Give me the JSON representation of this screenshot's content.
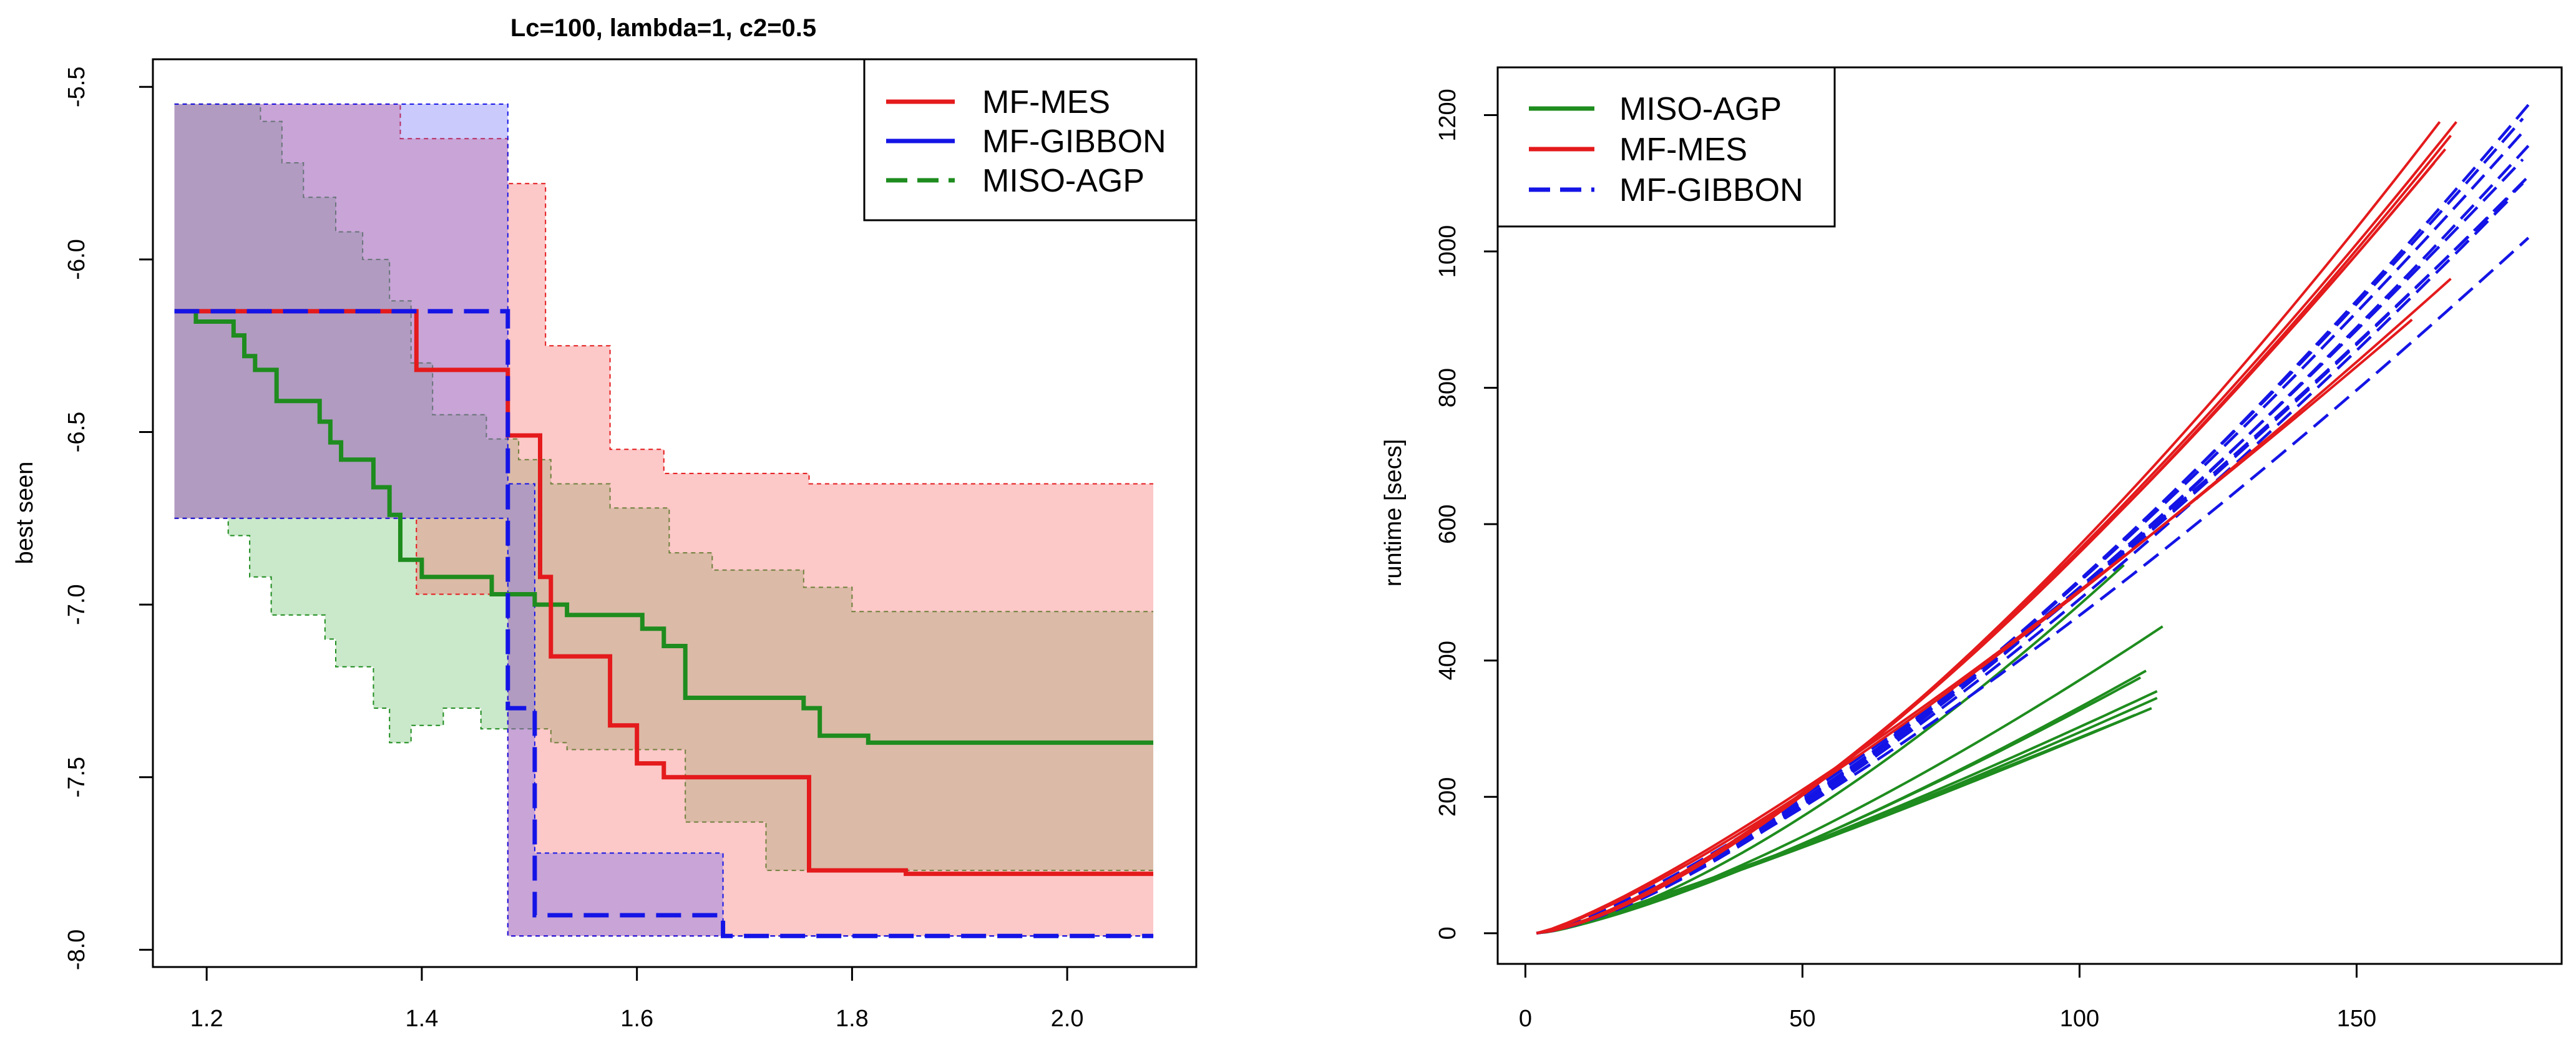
{
  "colors": {
    "mes": "#e41a1c",
    "gibbon": "#1414e6",
    "miso": "#1e8c1e",
    "mes_fill": "rgba(248,110,110,0.38)",
    "gibbon_fill": "rgba(90,90,250,0.32)",
    "miso_fill": "rgba(80,180,80,0.30)"
  },
  "chart_data": [
    {
      "type": "line",
      "title": "Lc=100, lambda=1, c2=0.5",
      "xlabel": "",
      "ylabel": "best seen",
      "xlim": [
        1.15,
        2.12
      ],
      "ylim": [
        -8.05,
        -5.42
      ],
      "xticks": [
        1.2,
        1.4,
        1.6,
        1.8,
        2.0
      ],
      "xtick_labels": [
        "1.2",
        "1.4",
        "1.6",
        "1.8",
        "2.0"
      ],
      "yticks": [
        -5.5,
        -6.0,
        -6.5,
        -7.0,
        -7.5,
        -8.0
      ],
      "ytick_labels": [
        "-5.5",
        "-6.0",
        "-6.5",
        "-7.0",
        "-7.5",
        "-8.0"
      ],
      "legend_position": "top-right",
      "legend": [
        {
          "label": "MF-MES",
          "series": "mes",
          "style": "solid"
        },
        {
          "label": "MF-GIBBON",
          "series": "gibbon",
          "style": "solid"
        },
        {
          "label": "MISO-AGP",
          "series": "miso",
          "style": "dashed"
        }
      ],
      "series": [
        {
          "name": "MISO-AGP",
          "key": "miso",
          "dashed": false,
          "mean": [
            [
              1.17,
              -6.15
            ],
            [
              1.19,
              -6.15
            ],
            [
              1.19,
              -6.18
            ],
            [
              1.225,
              -6.18
            ],
            [
              1.225,
              -6.22
            ],
            [
              1.235,
              -6.22
            ],
            [
              1.235,
              -6.28
            ],
            [
              1.245,
              -6.28
            ],
            [
              1.245,
              -6.32
            ],
            [
              1.265,
              -6.32
            ],
            [
              1.265,
              -6.41
            ],
            [
              1.305,
              -6.41
            ],
            [
              1.305,
              -6.47
            ],
            [
              1.315,
              -6.47
            ],
            [
              1.315,
              -6.53
            ],
            [
              1.325,
              -6.53
            ],
            [
              1.325,
              -6.58
            ],
            [
              1.355,
              -6.58
            ],
            [
              1.355,
              -6.66
            ],
            [
              1.37,
              -6.66
            ],
            [
              1.37,
              -6.74
            ],
            [
              1.38,
              -6.74
            ],
            [
              1.38,
              -6.87
            ],
            [
              1.4,
              -6.87
            ],
            [
              1.4,
              -6.92
            ],
            [
              1.465,
              -6.92
            ],
            [
              1.465,
              -6.97
            ],
            [
              1.505,
              -6.97
            ],
            [
              1.505,
              -7.0
            ],
            [
              1.535,
              -7.0
            ],
            [
              1.535,
              -7.03
            ],
            [
              1.605,
              -7.03
            ],
            [
              1.605,
              -7.07
            ],
            [
              1.625,
              -7.07
            ],
            [
              1.625,
              -7.12
            ],
            [
              1.645,
              -7.12
            ],
            [
              1.645,
              -7.27
            ],
            [
              1.755,
              -7.27
            ],
            [
              1.755,
              -7.3
            ],
            [
              1.77,
              -7.3
            ],
            [
              1.77,
              -7.38
            ],
            [
              1.815,
              -7.38
            ],
            [
              1.815,
              -7.4
            ],
            [
              2.08,
              -7.4
            ]
          ],
          "band": {
            "upper": [
              [
                1.17,
                -5.55
              ],
              [
                1.25,
                -5.55
              ],
              [
                1.25,
                -5.6
              ],
              [
                1.27,
                -5.6
              ],
              [
                1.27,
                -5.72
              ],
              [
                1.29,
                -5.72
              ],
              [
                1.29,
                -5.82
              ],
              [
                1.32,
                -5.82
              ],
              [
                1.32,
                -5.92
              ],
              [
                1.345,
                -5.92
              ],
              [
                1.345,
                -6.0
              ],
              [
                1.37,
                -6.0
              ],
              [
                1.37,
                -6.12
              ],
              [
                1.39,
                -6.12
              ],
              [
                1.39,
                -6.3
              ],
              [
                1.41,
                -6.3
              ],
              [
                1.41,
                -6.45
              ],
              [
                1.46,
                -6.45
              ],
              [
                1.46,
                -6.52
              ],
              [
                1.49,
                -6.52
              ],
              [
                1.49,
                -6.58
              ],
              [
                1.52,
                -6.58
              ],
              [
                1.52,
                -6.65
              ],
              [
                1.575,
                -6.65
              ],
              [
                1.575,
                -6.72
              ],
              [
                1.63,
                -6.72
              ],
              [
                1.63,
                -6.85
              ],
              [
                1.67,
                -6.85
              ],
              [
                1.67,
                -6.9
              ],
              [
                1.755,
                -6.9
              ],
              [
                1.755,
                -6.95
              ],
              [
                1.8,
                -6.95
              ],
              [
                1.8,
                -7.02
              ],
              [
                2.08,
                -7.02
              ]
            ],
            "lower": [
              [
                1.17,
                -6.75
              ],
              [
                1.22,
                -6.75
              ],
              [
                1.22,
                -6.8
              ],
              [
                1.24,
                -6.8
              ],
              [
                1.24,
                -6.92
              ],
              [
                1.26,
                -6.92
              ],
              [
                1.26,
                -7.03
              ],
              [
                1.31,
                -7.03
              ],
              [
                1.31,
                -7.1
              ],
              [
                1.32,
                -7.1
              ],
              [
                1.32,
                -7.18
              ],
              [
                1.355,
                -7.18
              ],
              [
                1.355,
                -7.3
              ],
              [
                1.37,
                -7.3
              ],
              [
                1.37,
                -7.4
              ],
              [
                1.39,
                -7.4
              ],
              [
                1.39,
                -7.35
              ],
              [
                1.42,
                -7.35
              ],
              [
                1.42,
                -7.3
              ],
              [
                1.455,
                -7.3
              ],
              [
                1.455,
                -7.36
              ],
              [
                1.52,
                -7.36
              ],
              [
                1.52,
                -7.4
              ],
              [
                1.535,
                -7.4
              ],
              [
                1.535,
                -7.42
              ],
              [
                1.645,
                -7.42
              ],
              [
                1.645,
                -7.63
              ],
              [
                1.72,
                -7.63
              ],
              [
                1.72,
                -7.77
              ],
              [
                2.08,
                -7.77
              ]
            ]
          }
        },
        {
          "name": "MF-MES",
          "key": "mes",
          "dashed": false,
          "mean": [
            [
              1.17,
              -6.15
            ],
            [
              1.395,
              -6.15
            ],
            [
              1.395,
              -6.32
            ],
            [
              1.48,
              -6.32
            ],
            [
              1.48,
              -6.51
            ],
            [
              1.51,
              -6.51
            ],
            [
              1.51,
              -6.92
            ],
            [
              1.52,
              -6.92
            ],
            [
              1.52,
              -7.15
            ],
            [
              1.575,
              -7.15
            ],
            [
              1.575,
              -7.35
            ],
            [
              1.6,
              -7.35
            ],
            [
              1.6,
              -7.46
            ],
            [
              1.625,
              -7.46
            ],
            [
              1.625,
              -7.5
            ],
            [
              1.76,
              -7.5
            ],
            [
              1.76,
              -7.77
            ],
            [
              1.85,
              -7.77
            ],
            [
              1.85,
              -7.78
            ],
            [
              2.08,
              -7.78
            ]
          ],
          "band": {
            "upper": [
              [
                1.17,
                -5.55
              ],
              [
                1.38,
                -5.55
              ],
              [
                1.38,
                -5.65
              ],
              [
                1.48,
                -5.65
              ],
              [
                1.48,
                -5.78
              ],
              [
                1.515,
                -5.78
              ],
              [
                1.515,
                -6.25
              ],
              [
                1.575,
                -6.25
              ],
              [
                1.575,
                -6.55
              ],
              [
                1.625,
                -6.55
              ],
              [
                1.625,
                -6.62
              ],
              [
                1.76,
                -6.62
              ],
              [
                1.76,
                -6.65
              ],
              [
                2.08,
                -6.65
              ]
            ],
            "lower": [
              [
                1.17,
                -6.75
              ],
              [
                1.395,
                -6.75
              ],
              [
                1.395,
                -6.97
              ],
              [
                1.48,
                -6.97
              ],
              [
                1.48,
                -7.96
              ],
              [
                2.08,
                -7.96
              ]
            ]
          }
        },
        {
          "name": "MF-GIBBON",
          "key": "gibbon",
          "dashed": true,
          "mean": [
            [
              1.17,
              -6.15
            ],
            [
              1.48,
              -6.15
            ],
            [
              1.48,
              -7.3
            ],
            [
              1.505,
              -7.3
            ],
            [
              1.505,
              -7.9
            ],
            [
              1.68,
              -7.9
            ],
            [
              1.68,
              -7.96
            ],
            [
              2.08,
              -7.96
            ]
          ],
          "band": {
            "upper": [
              [
                1.17,
                -5.55
              ],
              [
                1.48,
                -5.55
              ],
              [
                1.48,
                -6.65
              ],
              [
                1.505,
                -6.65
              ],
              [
                1.505,
                -7.72
              ],
              [
                1.68,
                -7.72
              ],
              [
                1.68,
                -7.96
              ],
              [
                2.08,
                -7.96
              ]
            ],
            "lower": [
              [
                1.17,
                -6.75
              ],
              [
                1.48,
                -6.75
              ],
              [
                1.48,
                -7.96
              ],
              [
                2.08,
                -7.96
              ]
            ]
          }
        }
      ]
    },
    {
      "type": "line",
      "title": "",
      "xlabel": "",
      "ylabel": "runtime [secs]",
      "xlim": [
        -5,
        187
      ],
      "ylim": [
        -45,
        1270
      ],
      "xticks": [
        0,
        50,
        100,
        150
      ],
      "xtick_labels": [
        "0",
        "50",
        "100",
        "150"
      ],
      "yticks": [
        0,
        200,
        400,
        600,
        800,
        1000,
        1200
      ],
      "ytick_labels": [
        "0",
        "200",
        "400",
        "600",
        "800",
        "1000",
        "1200"
      ],
      "legend_position": "top-left",
      "legend": [
        {
          "label": "MISO-AGP",
          "series": "miso",
          "style": "solid"
        },
        {
          "label": "MF-MES",
          "series": "mes",
          "style": "solid"
        },
        {
          "label": "MF-GIBBON",
          "series": "gibbon",
          "style": "dashed"
        }
      ],
      "series": [
        {
          "name": "MISO-AGP",
          "key": "miso",
          "dashed": false,
          "runs": [
            {
              "end": [
                115,
                450
              ],
              "bend": 1.35
            },
            {
              "end": [
                112,
                385
              ],
              "bend": 1.3
            },
            {
              "end": [
                111,
                375
              ],
              "bend": 1.28
            },
            {
              "end": [
                114,
                355
              ],
              "bend": 1.2
            },
            {
              "end": [
                114,
                345
              ],
              "bend": 1.18
            },
            {
              "end": [
                113,
                330
              ],
              "bend": 1.15
            },
            {
              "end": [
                110,
                320
              ],
              "bend": 1.12
            },
            {
              "end": [
                108,
                540
              ],
              "bend": 1.45
            }
          ]
        },
        {
          "name": "MF-GIBBON",
          "key": "gibbon",
          "dashed": true,
          "runs": [
            {
              "end": [
                181,
                1215
              ],
              "bend": 1.42
            },
            {
              "end": [
                180,
                1195
              ],
              "bend": 1.4
            },
            {
              "end": [
                180,
                1175
              ],
              "bend": 1.38
            },
            {
              "end": [
                181,
                1155
              ],
              "bend": 1.38
            },
            {
              "end": [
                180,
                1135
              ],
              "bend": 1.35
            },
            {
              "end": [
                181,
                1110
              ],
              "bend": 1.32
            },
            {
              "end": [
                180,
                1100
              ],
              "bend": 1.3
            },
            {
              "end": [
                178,
                1080
              ],
              "bend": 1.35
            },
            {
              "end": [
                181,
                1020
              ],
              "bend": 1.3
            }
          ]
        },
        {
          "name": "MF-MES",
          "key": "mes",
          "dashed": false,
          "runs": [
            {
              "end": [
                168,
                1190
              ],
              "bend": 1.42
            },
            {
              "end": [
                165,
                1190
              ],
              "bend": 1.45
            },
            {
              "end": [
                167,
                1170
              ],
              "bend": 1.42
            },
            {
              "end": [
                166,
                1150
              ],
              "bend": 1.4
            },
            {
              "end": [
                164,
                1130
              ],
              "bend": 1.4
            },
            {
              "end": [
                167,
                960
              ],
              "bend": 1.25
            },
            {
              "end": [
                160,
                900
              ],
              "bend": 1.22
            }
          ]
        }
      ]
    }
  ]
}
